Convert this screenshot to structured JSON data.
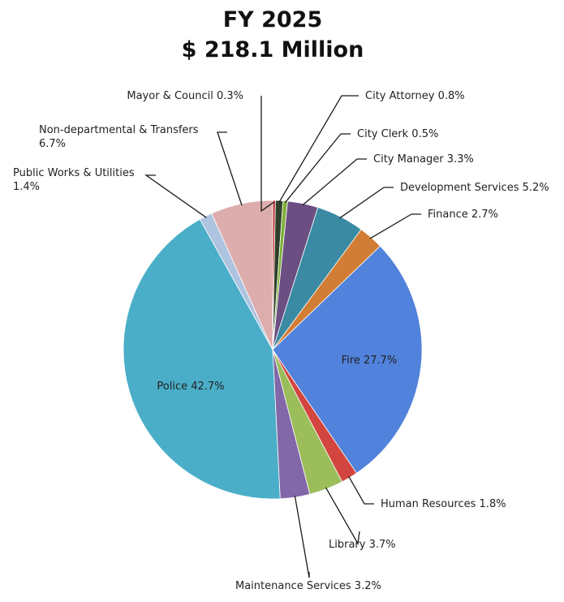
{
  "chart_data": {
    "type": "pie",
    "title": "FY 2025",
    "subtitle": "$ 218.1 Million",
    "series": [
      {
        "name": "Mayor & Council",
        "value": 0.3,
        "label": "Mayor & Council 0.3%",
        "color": "#c0393b"
      },
      {
        "name": "City Attorney",
        "value": 0.8,
        "label": "City Attorney 0.8%",
        "color": "#2f3f2a"
      },
      {
        "name": "City Clerk",
        "value": 0.5,
        "label": "City Clerk 0.5%",
        "color": "#7fb03a"
      },
      {
        "name": "City Manager",
        "value": 3.3,
        "label": "City Manager 3.3%",
        "color": "#6b4f83"
      },
      {
        "name": "Development Services",
        "value": 5.2,
        "label": "Development Services 5.2%",
        "color": "#3a8aa3"
      },
      {
        "name": "Finance",
        "value": 2.7,
        "label": "Finance 2.7%",
        "color": "#d27d35"
      },
      {
        "name": "Fire",
        "value": 27.7,
        "label": "Fire 27.7%",
        "color": "#5182dc"
      },
      {
        "name": "Human Resources",
        "value": 1.8,
        "label": "Human Resources 1.8%",
        "color": "#d2463f"
      },
      {
        "name": "Library",
        "value": 3.7,
        "label": "Library 3.7%",
        "color": "#9bbd5a"
      },
      {
        "name": "Maintenance Services",
        "value": 3.2,
        "label": "Maintenance Services 3.2%",
        "color": "#8268a8"
      },
      {
        "name": "Police",
        "value": 42.7,
        "label": "Police 42.7%",
        "color": "#4aaec8"
      },
      {
        "name": "Public Works & Utilities",
        "value": 1.4,
        "label_lines": [
          "Public Works & Utilities",
          "1.4%"
        ],
        "color": "#aec3e0"
      },
      {
        "name": "Non-departmental & Transfers",
        "value": 6.7,
        "label_lines": [
          "Non-departmental & Transfers",
          "6.7%"
        ],
        "color": "#dcadac"
      }
    ]
  }
}
